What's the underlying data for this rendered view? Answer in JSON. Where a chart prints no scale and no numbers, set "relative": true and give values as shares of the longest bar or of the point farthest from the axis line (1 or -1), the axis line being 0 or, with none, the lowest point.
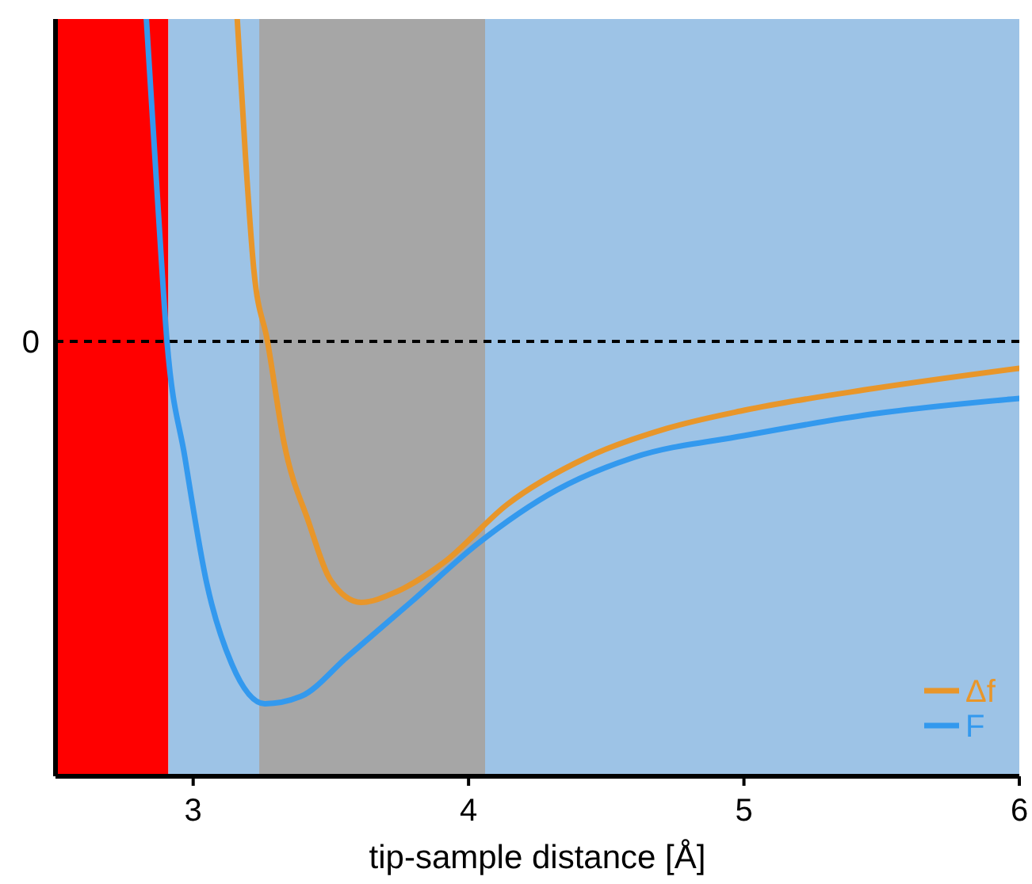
{
  "chart_data": {
    "type": "line",
    "relative": true,
    "xlabel": "tip-sample distance [Å]",
    "xlim": [
      2.5,
      6
    ],
    "xticks": [
      3,
      4,
      5,
      6
    ],
    "grid": false,
    "legend": "bottom right",
    "line_style": "solid",
    "bands": [
      {
        "axis": "x",
        "from": 2.5,
        "to": 2.91,
        "color": "#ff0000"
      },
      {
        "axis": "x",
        "from": 2.91,
        "to": 6,
        "color": "#9dc3e6"
      },
      {
        "axis": "x",
        "from": 3.24,
        "to": 4.06,
        "color": "#a6a6a6"
      }
    ],
    "ref_lines": [
      {
        "axis": "y",
        "value": 0,
        "label": "0",
        "color": "#000000",
        "line_style": "dashed"
      }
    ],
    "series": [
      {
        "name": "Δf",
        "color": "#e8962a",
        "x": [
          3.16,
          3.19,
          3.22,
          3.27,
          3.33,
          3.42,
          3.5,
          3.61,
          3.74,
          3.91,
          4.14,
          4.43,
          4.72,
          5.0,
          5.47,
          6.0
        ],
        "values": [
          0.89,
          0.51,
          0.2,
          0,
          -0.28,
          -0.5,
          -0.66,
          -0.72,
          -0.69,
          -0.61,
          -0.45,
          -0.32,
          -0.24,
          -0.19,
          -0.13,
          -0.074
        ]
      },
      {
        "name": "F",
        "color": "#3399ee",
        "x": [
          2.83,
          2.87,
          2.905,
          2.97,
          3.05,
          3.14,
          3.26,
          3.39,
          3.56,
          3.79,
          4.03,
          4.32,
          4.6,
          5.0,
          5.47,
          6.0
        ],
        "values": [
          0.89,
          0.4,
          0,
          -0.32,
          -0.67,
          -0.89,
          -1,
          -0.98,
          -0.87,
          -0.72,
          -0.56,
          -0.41,
          -0.32,
          -0.26,
          -0.2,
          -0.157
        ]
      }
    ]
  }
}
